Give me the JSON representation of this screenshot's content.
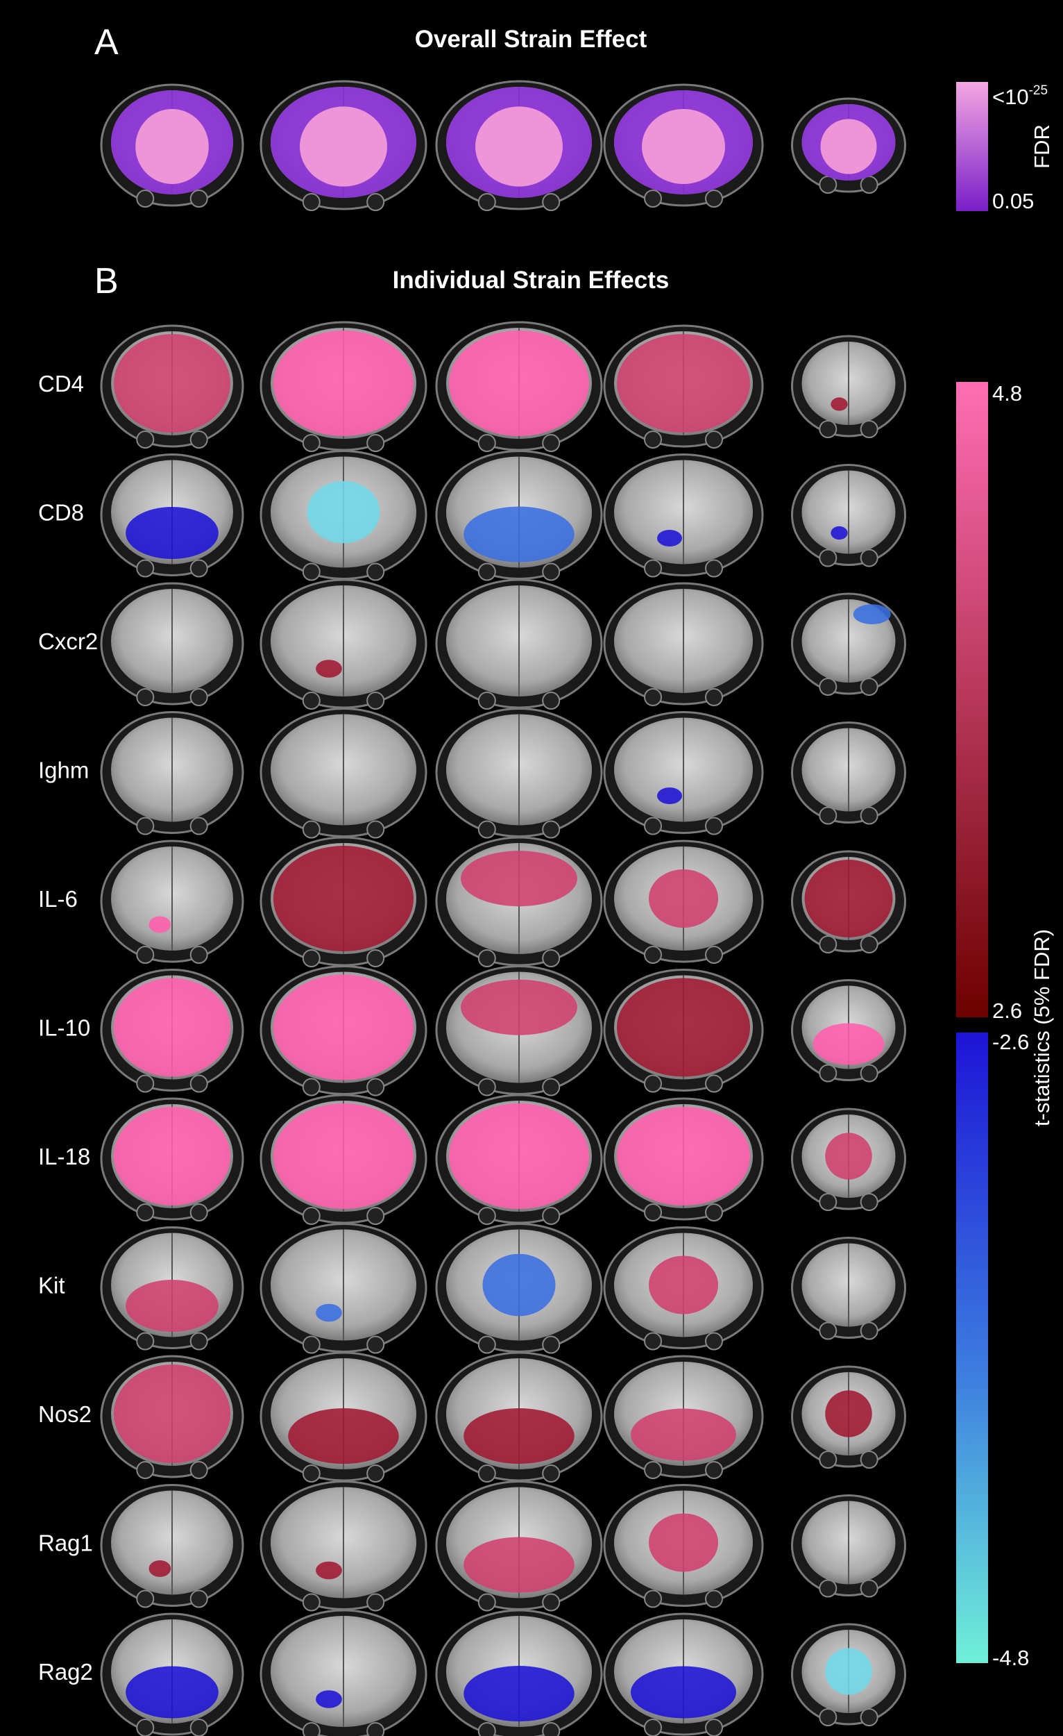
{
  "panels": [
    {
      "letter": "A",
      "title": "Overall Strain Effect"
    },
    {
      "letter": "B",
      "title": "Individual Strain Effects"
    }
  ],
  "colorbar_fdr": {
    "label": "FDR",
    "top_label_base": "<10",
    "top_label_exp": "-25",
    "bottom_label": "0.05",
    "color_top": "#f3a7e2",
    "color_bottom": "#7a1fc9"
  },
  "colorbar_t": {
    "label": "t-statistics (5% FDR)",
    "positive": {
      "top": "4.8",
      "bottom": "2.6",
      "color_top": "#ff6eb4",
      "color_bottom": "#6e0000"
    },
    "negative": {
      "top": "-2.6",
      "bottom": "-4.8",
      "color_top": "#1d14d6",
      "color_bottom": "#6ff0d8"
    }
  },
  "strains": [
    "CD4",
    "CD8",
    "Cxcr2",
    "Ighm",
    "IL-6",
    "IL-10",
    "IL-18",
    "Kit",
    "Nos2",
    "Rag1",
    "Rag2"
  ],
  "overlay_colors": {
    "strong_pos": "#ff5fae",
    "mid_pos": "#d0406e",
    "weak_pos": "#a01832",
    "strong_neg": "#1d14d6",
    "mid_neg": "#3a6ee0",
    "weak_neg": "#6fd8e6",
    "fdr_high": "#f39ad8",
    "fdr_low": "#8a2fd6"
  }
}
